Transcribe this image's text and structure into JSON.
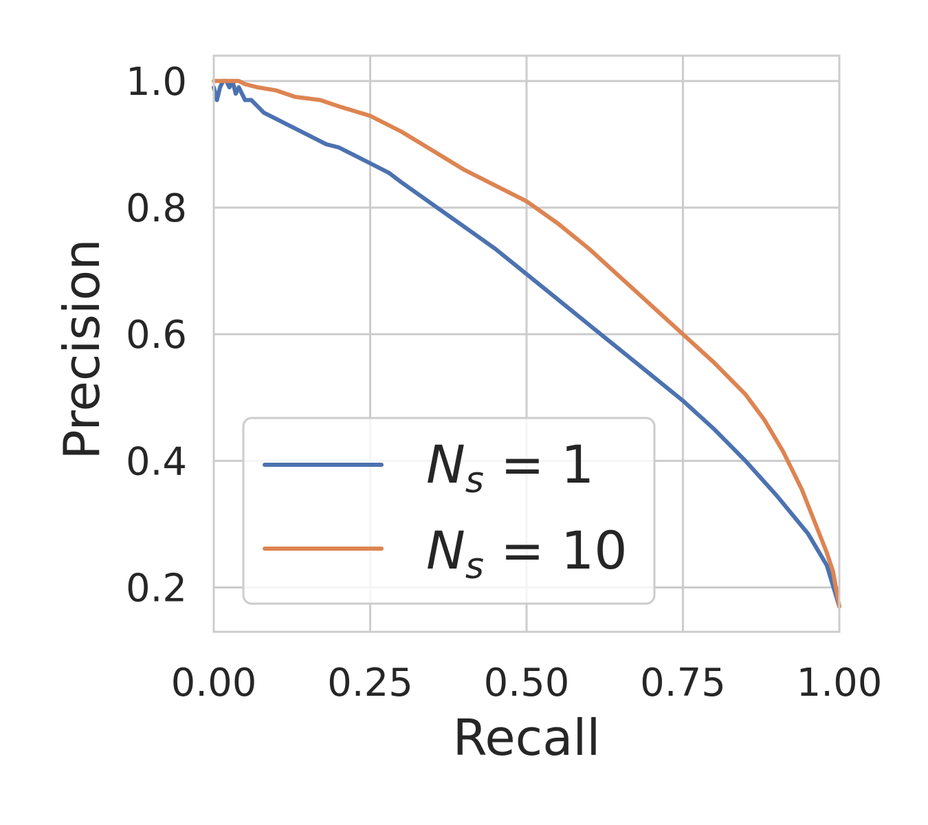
{
  "chart_data": {
    "type": "line",
    "title": "",
    "xlabel": "Recall",
    "ylabel": "Precision",
    "xlim": [
      0.0,
      1.0
    ],
    "ylim": [
      0.13,
      1.04
    ],
    "xticks": [
      0.0,
      0.25,
      0.5,
      0.75,
      1.0
    ],
    "xtick_labels": [
      "0.00",
      "0.25",
      "0.50",
      "0.75",
      "1.00"
    ],
    "yticks": [
      0.2,
      0.4,
      0.6,
      0.8,
      1.0
    ],
    "ytick_labels": [
      "0.2",
      "0.4",
      "0.6",
      "0.8",
      "1.0"
    ],
    "grid": true,
    "legend_position": "lower-left",
    "series": [
      {
        "legend_base": "N",
        "legend_sub": "s",
        "legend_rest": " = 1",
        "color": "#4c72b0",
        "x": [
          0.0,
          0.005,
          0.01,
          0.015,
          0.02,
          0.025,
          0.03,
          0.035,
          0.04,
          0.05,
          0.06,
          0.07,
          0.08,
          0.1,
          0.12,
          0.15,
          0.18,
          0.2,
          0.22,
          0.25,
          0.28,
          0.3,
          0.35,
          0.4,
          0.45,
          0.5,
          0.55,
          0.6,
          0.65,
          0.7,
          0.75,
          0.8,
          0.85,
          0.9,
          0.95,
          0.98,
          1.0
        ],
        "y": [
          0.99,
          0.97,
          0.99,
          1.0,
          1.0,
          0.99,
          1.0,
          0.98,
          0.99,
          0.97,
          0.97,
          0.96,
          0.95,
          0.94,
          0.93,
          0.915,
          0.9,
          0.895,
          0.885,
          0.87,
          0.855,
          0.84,
          0.805,
          0.77,
          0.735,
          0.695,
          0.655,
          0.615,
          0.575,
          0.535,
          0.495,
          0.45,
          0.4,
          0.345,
          0.285,
          0.235,
          0.17
        ]
      },
      {
        "legend_base": "N",
        "legend_sub": "s",
        "legend_rest": " = 10",
        "color": "#dd8452",
        "x": [
          0.0,
          0.02,
          0.04,
          0.05,
          0.07,
          0.1,
          0.13,
          0.17,
          0.2,
          0.25,
          0.3,
          0.35,
          0.4,
          0.45,
          0.5,
          0.55,
          0.6,
          0.65,
          0.7,
          0.75,
          0.8,
          0.85,
          0.88,
          0.91,
          0.94,
          0.96,
          0.98,
          0.99,
          1.0
        ],
        "y": [
          1.0,
          1.0,
          1.0,
          0.995,
          0.99,
          0.985,
          0.975,
          0.97,
          0.96,
          0.945,
          0.92,
          0.89,
          0.86,
          0.835,
          0.81,
          0.775,
          0.735,
          0.69,
          0.645,
          0.6,
          0.555,
          0.505,
          0.465,
          0.415,
          0.355,
          0.305,
          0.255,
          0.225,
          0.17
        ]
      }
    ]
  }
}
